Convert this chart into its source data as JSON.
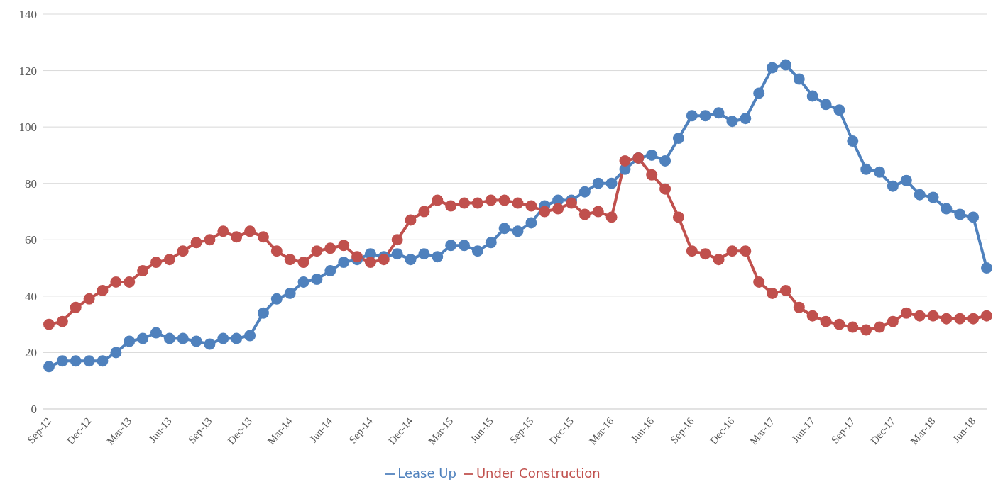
{
  "chart_data": {
    "type": "line",
    "categories": [
      "Sep-12",
      null,
      null,
      "Dec-12",
      null,
      null,
      "Mar-13",
      null,
      null,
      "Jun-13",
      null,
      null,
      "Sep-13",
      null,
      null,
      "Dec-13",
      null,
      null,
      "Mar-14",
      null,
      null,
      "Jun-14",
      null,
      null,
      "Sep-14",
      null,
      null,
      "Dec-14",
      null,
      null,
      "Mar-15",
      null,
      null,
      "Jun-15",
      null,
      null,
      "Sep-15",
      null,
      null,
      "Dec-15",
      null,
      null,
      "Mar-16",
      null,
      null,
      "Jun-16",
      null,
      null,
      "Sep-16",
      null,
      null,
      "Dec-16",
      null,
      null,
      "Mar-17",
      null,
      null,
      "Jun-17",
      null,
      null,
      "Sep-17",
      null,
      null,
      "Dec-17",
      null,
      null,
      "Mar-18",
      null,
      null,
      "Jun-18",
      null
    ],
    "series": [
      {
        "name": "Lease Up",
        "color": "#4f81bd",
        "values": [
          15,
          17,
          17,
          17,
          17,
          20,
          24,
          25,
          27,
          25,
          25,
          24,
          23,
          25,
          25,
          26,
          34,
          39,
          41,
          45,
          46,
          49,
          52,
          53,
          55,
          54,
          55,
          53,
          55,
          54,
          58,
          58,
          56,
          59,
          64,
          63,
          66,
          72,
          74,
          74,
          77,
          80,
          80,
          85,
          89,
          90,
          88,
          96,
          104,
          104,
          105,
          102,
          103,
          112,
          121,
          122,
          117,
          111,
          108,
          106,
          95,
          85,
          84,
          79,
          81,
          76,
          75,
          71,
          69,
          68,
          50
        ]
      },
      {
        "name": "Under Construction",
        "color": "#c0504d",
        "values": [
          30,
          31,
          36,
          39,
          42,
          45,
          45,
          49,
          52,
          53,
          56,
          59,
          60,
          63,
          61,
          63,
          61,
          56,
          53,
          52,
          56,
          57,
          58,
          54,
          52,
          53,
          60,
          67,
          70,
          74,
          72,
          73,
          73,
          74,
          74,
          73,
          72,
          70,
          71,
          73,
          69,
          70,
          68,
          88,
          89,
          83,
          78,
          68,
          56,
          55,
          53,
          56,
          56,
          45,
          41,
          42,
          36,
          33,
          31,
          30,
          29,
          28,
          29,
          31,
          34,
          33,
          33,
          32,
          32,
          32,
          33
        ]
      }
    ],
    "ylim": [
      0,
      140
    ],
    "yticks": [
      0,
      20,
      40,
      60,
      80,
      100,
      120,
      140
    ],
    "grid": "y",
    "legend": "bottom",
    "marker": "circle",
    "line_style": "solid"
  }
}
